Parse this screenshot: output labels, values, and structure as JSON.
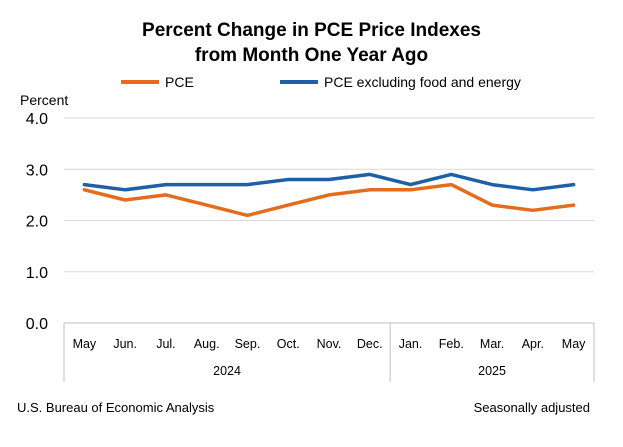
{
  "chart_data": {
    "type": "line",
    "title_line1": "Percent Change in PCE Price Indexes",
    "title_line2": "from Month One Year Ago",
    "ylabel": "Percent",
    "yticks": [
      "4.0",
      "3.0",
      "2.0",
      "1.0",
      "0.0"
    ],
    "ylim": [
      0,
      4
    ],
    "categories": [
      "May",
      "Jun.",
      "Jul.",
      "Aug.",
      "Sep.",
      "Oct.",
      "Nov.",
      "Dec.",
      "Jan.",
      "Feb.",
      "Mar.",
      "Apr.",
      "May"
    ],
    "year_groups": [
      {
        "label": "2024",
        "count": 8
      },
      {
        "label": "2025",
        "count": 5
      }
    ],
    "series": [
      {
        "name": "PCE",
        "color": "#E36C1D",
        "values": [
          2.6,
          2.4,
          2.5,
          2.3,
          2.1,
          2.3,
          2.5,
          2.6,
          2.6,
          2.7,
          2.3,
          2.2,
          2.3
        ]
      },
      {
        "name": "PCE excluding food and energy",
        "color": "#1F5FA6",
        "values": [
          2.7,
          2.6,
          2.7,
          2.7,
          2.7,
          2.8,
          2.8,
          2.9,
          2.7,
          2.9,
          2.7,
          2.6,
          2.7
        ]
      }
    ],
    "grid": "horizontal",
    "legend_position": "top"
  },
  "footer": {
    "source": "U.S. Bureau of Economic Analysis",
    "note": "Seasonally adjusted"
  }
}
